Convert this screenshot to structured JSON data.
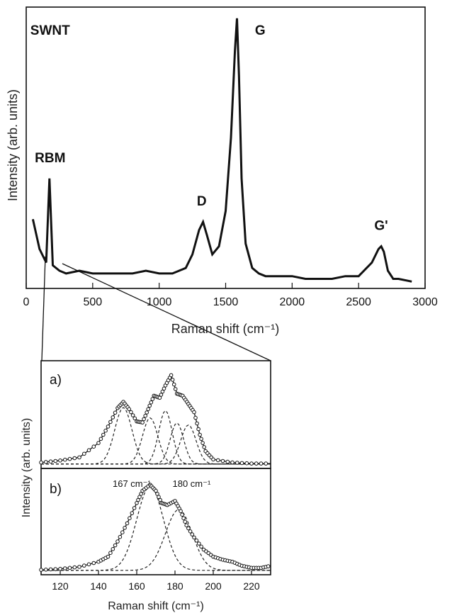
{
  "chart_data": [
    {
      "type": "line",
      "title": "SWNT",
      "xlabel": "Raman shift (cm⁻¹)",
      "ylabel": "Intensity (arb. units)",
      "xlim": [
        0,
        3000
      ],
      "ylim": [
        0,
        1
      ],
      "xticks": [
        0,
        500,
        1000,
        1500,
        2000,
        2500,
        3000
      ],
      "annotations": [
        {
          "text": "SWNT",
          "x": 180,
          "y": 0.93
        },
        {
          "text": "RBM",
          "x": 180,
          "y": 0.46
        },
        {
          "text": "D",
          "x": 1320,
          "y": 0.3
        },
        {
          "text": "G",
          "x": 1760,
          "y": 0.93
        },
        {
          "text": "G'",
          "x": 2670,
          "y": 0.21
        }
      ],
      "series": [
        {
          "name": "",
          "x": [
            50,
            100,
            150,
            175,
            200,
            250,
            300,
            400,
            500,
            600,
            700,
            800,
            900,
            1000,
            1100,
            1200,
            1250,
            1300,
            1330,
            1360,
            1400,
            1450,
            1500,
            1540,
            1570,
            1585,
            1600,
            1620,
            1650,
            1700,
            1750,
            1800,
            1900,
            2000,
            2100,
            2200,
            2300,
            2400,
            2500,
            2600,
            2650,
            2670,
            2690,
            2720,
            2760,
            2800,
            2900
          ],
          "y": [
            0.25,
            0.14,
            0.09,
            0.4,
            0.08,
            0.06,
            0.05,
            0.06,
            0.05,
            0.05,
            0.05,
            0.05,
            0.06,
            0.05,
            0.05,
            0.07,
            0.12,
            0.21,
            0.24,
            0.19,
            0.12,
            0.15,
            0.28,
            0.55,
            0.87,
            0.99,
            0.78,
            0.4,
            0.16,
            0.07,
            0.05,
            0.04,
            0.04,
            0.04,
            0.03,
            0.03,
            0.03,
            0.04,
            0.04,
            0.09,
            0.14,
            0.15,
            0.13,
            0.06,
            0.03,
            0.03,
            0.02
          ]
        }
      ]
    },
    {
      "type": "scatter",
      "panel_label": "a)",
      "xlim": [
        110,
        230
      ],
      "series": [
        {
          "name": "",
          "x": [
            110,
            120,
            130,
            140,
            145,
            150,
            153,
            156,
            160,
            163,
            166,
            169,
            172,
            175,
            178,
            181,
            184,
            187,
            190,
            193,
            196,
            200,
            210,
            220,
            230
          ],
          "y": [
            0.03,
            0.05,
            0.08,
            0.22,
            0.38,
            0.56,
            0.62,
            0.55,
            0.43,
            0.42,
            0.55,
            0.68,
            0.66,
            0.78,
            0.88,
            0.7,
            0.68,
            0.6,
            0.52,
            0.3,
            0.14,
            0.06,
            0.03,
            0.02,
            0.02
          ]
        }
      ]
    },
    {
      "type": "scatter",
      "panel_label": "b)",
      "xlabel": "Raman shift (cm⁻¹)",
      "ylabel": "Intensity (arb. units)",
      "xlim": [
        110,
        230
      ],
      "xticks": [
        120,
        140,
        160,
        180,
        200,
        220
      ],
      "annotations": [
        {
          "text": "167 cm⁻¹",
          "x": 167
        },
        {
          "text": "180 cm⁻¹",
          "x": 182
        }
      ],
      "series": [
        {
          "name": "",
          "x": [
            110,
            120,
            130,
            140,
            145,
            150,
            155,
            160,
            163,
            167,
            170,
            173,
            176,
            180,
            183,
            186,
            190,
            195,
            200,
            205,
            210,
            215,
            220,
            225,
            230
          ],
          "y": [
            0.02,
            0.03,
            0.05,
            0.1,
            0.15,
            0.3,
            0.48,
            0.68,
            0.8,
            0.86,
            0.8,
            0.68,
            0.66,
            0.7,
            0.6,
            0.46,
            0.34,
            0.22,
            0.15,
            0.12,
            0.1,
            0.06,
            0.04,
            0.04,
            0.06
          ]
        }
      ]
    }
  ]
}
